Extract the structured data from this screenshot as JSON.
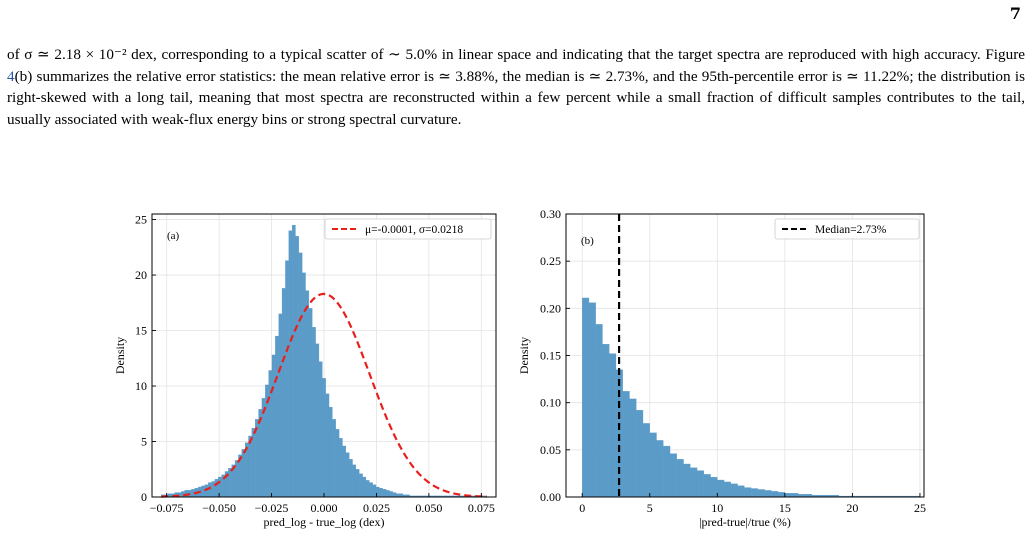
{
  "page": {
    "number": "7",
    "paragraph_before": "of σ ≃ 2.18 × 10⁻² dex, corresponding to a typical scatter of ∼ 5.0% in linear space and indicating that the target spectra are reproduced with high accuracy. Figure ",
    "figure_ref": "4",
    "paragraph_after": "(b) summarizes the relative error statistics: the mean relative error is ≃ 3.88%, the median is ≃ 2.73%, and the 95th-percentile error is ≃ 11.22%; the distribution is right-skewed with a long tail, meaning that most spectra are reconstructed within a few percent while a small fraction of difficult samples contributes to the tail, usually associated with weak-flux energy bins or strong spectral curvature."
  },
  "chart_data": [
    {
      "type": "bar",
      "panel_label": "(a)",
      "xlabel": "pred_log - true_log (dex)",
      "ylabel": "Density",
      "xlim": [
        -0.082,
        0.082
      ],
      "ylim": [
        0,
        25.5
      ],
      "xticks": [
        -0.075,
        -0.05,
        -0.025,
        0.0,
        0.025,
        0.05,
        0.075
      ],
      "xtick_labels": [
        "−0.075",
        "−0.050",
        "−0.025",
        "0.000",
        "0.025",
        "0.050",
        "0.075"
      ],
      "yticks": [
        0,
        5,
        10,
        15,
        20,
        25
      ],
      "ytick_labels": [
        "0",
        "5",
        "10",
        "15",
        "20",
        "25"
      ],
      "grid": true,
      "bar_color": "#5b9bc8",
      "histogram": {
        "bin_start": -0.0776,
        "bin_width": 0.0016,
        "values": [
          0.2,
          0.2,
          0.3,
          0.3,
          0.4,
          0.4,
          0.5,
          0.6,
          0.6,
          0.7,
          0.8,
          0.9,
          1.0,
          1.1,
          1.3,
          1.4,
          1.6,
          1.8,
          2.0,
          2.3,
          2.6,
          2.9,
          3.3,
          3.8,
          4.3,
          4.9,
          5.5,
          6.2,
          7.0,
          7.9,
          8.9,
          10.1,
          11.4,
          12.8,
          14.5,
          16.5,
          18.8,
          21.3,
          24.0,
          24.5,
          23.5,
          22.0,
          20.2,
          18.6,
          17.0,
          15.3,
          13.8,
          12.2,
          10.7,
          9.3,
          8.1,
          7.0,
          6.1,
          5.3,
          4.6,
          4.0,
          3.4,
          2.9,
          2.5,
          2.1,
          1.8,
          1.5,
          1.3,
          1.1,
          0.9,
          0.8,
          0.7,
          0.6,
          0.5,
          0.4,
          0.3,
          0.3,
          0.2,
          0.2,
          0.1,
          0.1,
          0.1,
          0.1,
          0.1,
          0.1,
          0.1,
          0.1,
          0.1,
          0.1,
          0.1,
          0.1,
          0.1,
          0.1,
          0.1,
          0.1,
          0.1,
          0.1,
          0.1,
          0.1,
          0.1,
          0.1,
          0.1
        ]
      },
      "fit": {
        "mu": -0.0001,
        "sigma": 0.0218,
        "color": "#e8201c"
      },
      "legend": {
        "label": "μ=-0.0001, σ=0.0218",
        "placement": "top-right"
      }
    },
    {
      "type": "bar",
      "panel_label": "(b)",
      "xlabel": "|pred-true|/true (%)",
      "ylabel": "Density",
      "xlim": [
        -1.2,
        25.3
      ],
      "ylim": [
        0,
        0.3
      ],
      "xticks": [
        0,
        5,
        10,
        15,
        20,
        25
      ],
      "xtick_labels": [
        "0",
        "5",
        "10",
        "15",
        "20",
        "25"
      ],
      "yticks": [
        0.0,
        0.05,
        0.1,
        0.15,
        0.2,
        0.25,
        0.3
      ],
      "ytick_labels": [
        "0.00",
        "0.05",
        "0.10",
        "0.15",
        "0.20",
        "0.25",
        "0.30"
      ],
      "grid": true,
      "bar_color": "#5b9bc8",
      "histogram": {
        "bin_start": 0,
        "bin_width": 0.5,
        "values": [
          0.211,
          0.206,
          0.183,
          0.162,
          0.152,
          0.135,
          0.112,
          0.104,
          0.092,
          0.078,
          0.068,
          0.06,
          0.054,
          0.046,
          0.04,
          0.035,
          0.031,
          0.028,
          0.024,
          0.021,
          0.018,
          0.016,
          0.014,
          0.012,
          0.01,
          0.009,
          0.008,
          0.007,
          0.006,
          0.005,
          0.004,
          0.004,
          0.003,
          0.003,
          0.002,
          0.002,
          0.002,
          0.002,
          0.001,
          0.001,
          0.001,
          0.001,
          0.001,
          0.001,
          0.001,
          0.001,
          0.001,
          0.001,
          0.001,
          0.001
        ]
      },
      "median_line": {
        "x": 2.73,
        "color": "#000000"
      },
      "legend": {
        "label": "Median=2.73%",
        "placement": "top-right"
      }
    }
  ]
}
